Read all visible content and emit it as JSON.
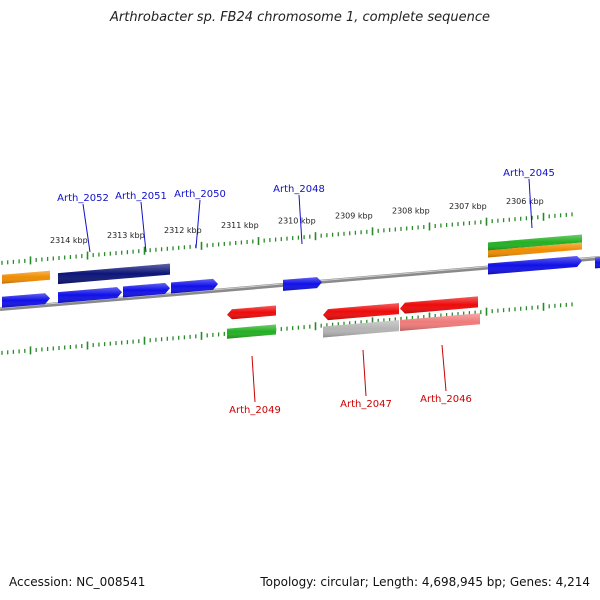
{
  "title": "Arthrobacter sp. FB24 chromosome 1, complete sequence",
  "footer": {
    "accession": "Accession: NC_008541",
    "summary": "Topology: circular; Length: 4,698,945 bp; Genes: 4,214"
  },
  "colors": {
    "blue": "#1010e8",
    "navy": "#0c1478",
    "red": "#ee0a0a",
    "green": "#22b022",
    "orange": "#f08c00",
    "gray": "#b4b4b4",
    "pink": "#f07a7a",
    "tick": "#2a8a2a",
    "backbone": "#8a8a8a"
  },
  "scale": {
    "labels": [
      "2314 kbp",
      "2313 kbp",
      "2312 kbp",
      "2311 kbp",
      "2310 kbp",
      "2309 kbp",
      "2308 kbp",
      "2307 kbp",
      "2306 kbp"
    ]
  },
  "gene_labels": {
    "forward": [
      "Arth_2052",
      "Arth_2051",
      "Arth_2050",
      "Arth_2048",
      "Arth_2045"
    ],
    "reverse": [
      "Arth_2049",
      "Arth_2047",
      "Arth_2046"
    ]
  }
}
